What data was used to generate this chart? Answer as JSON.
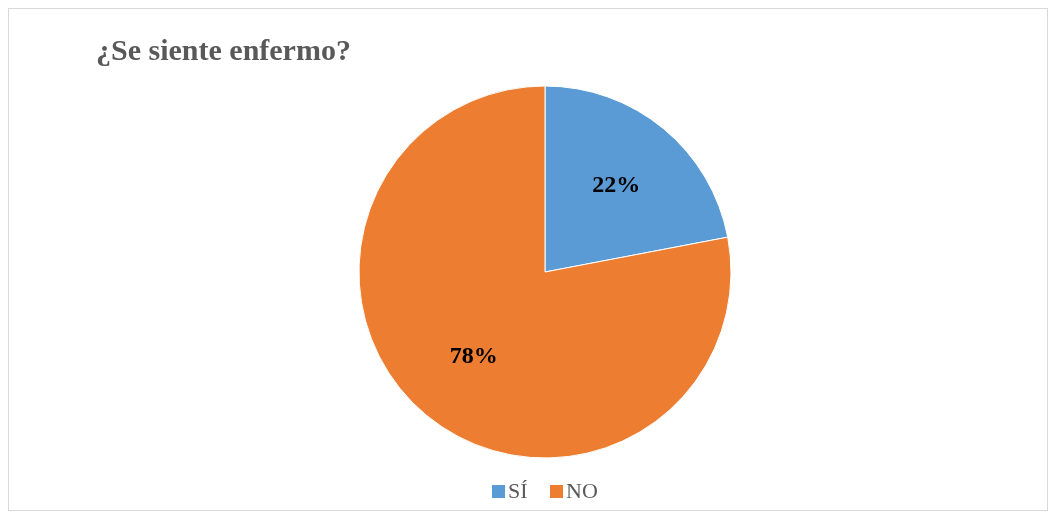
{
  "chart_data": {
    "type": "pie",
    "title": "¿Se siente enfermo?",
    "categories": [
      "SÍ",
      "NO"
    ],
    "values": [
      22,
      78
    ],
    "colors": [
      "#5b9bd5",
      "#ed7d31"
    ],
    "value_labels": [
      "22%",
      "78%"
    ],
    "legend": "bottom"
  }
}
